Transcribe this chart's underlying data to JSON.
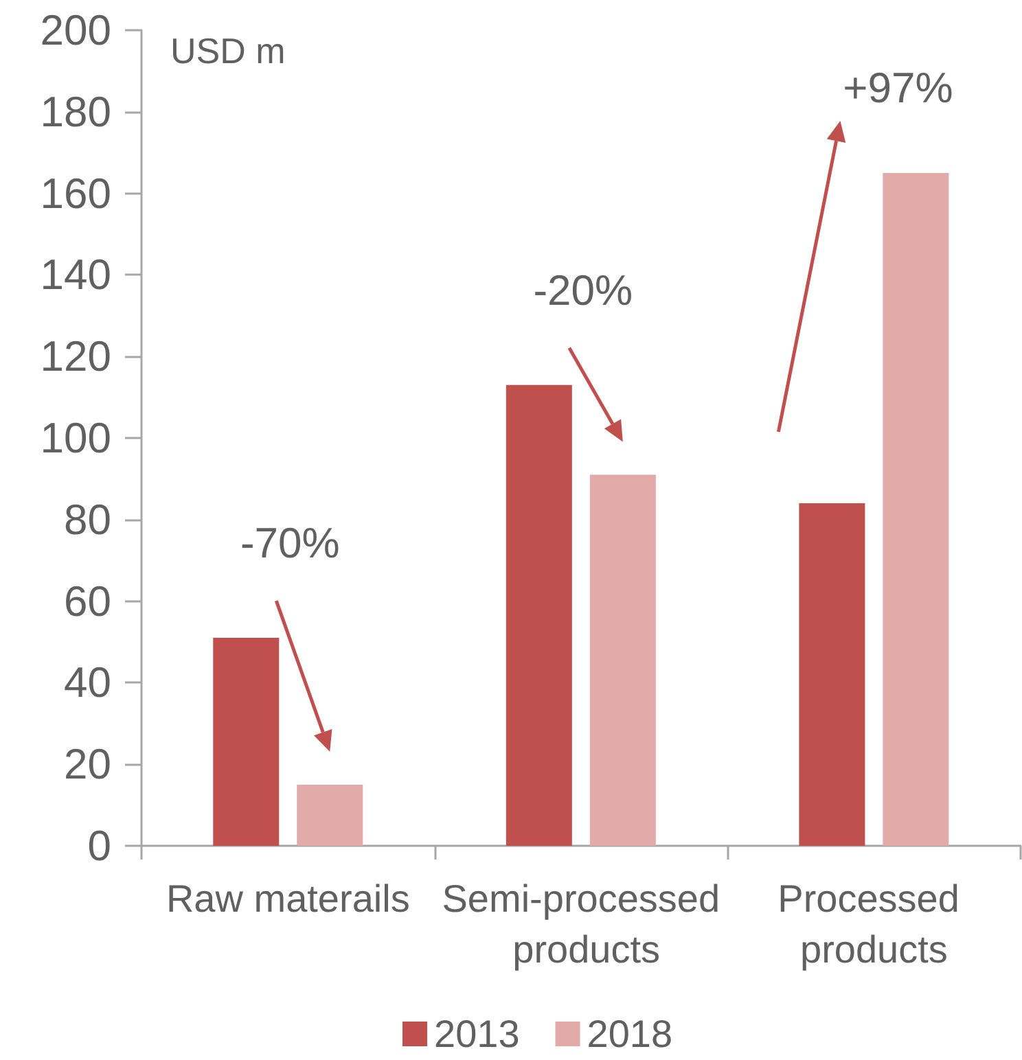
{
  "chart_data": {
    "type": "bar",
    "ylabel": "USD m",
    "categories": [
      "Raw materails",
      "Semi-processed products",
      "Processed products"
    ],
    "series": [
      {
        "name": "2013",
        "color": "#c0504d",
        "values": [
          51,
          113,
          84
        ]
      },
      {
        "name": "2018",
        "color": "#e2aaa9",
        "values": [
          15,
          91,
          165
        ]
      }
    ],
    "ylim": [
      0,
      200
    ],
    "yticks": [
      0,
      20,
      40,
      60,
      80,
      100,
      120,
      140,
      160,
      180,
      200
    ],
    "grid": false,
    "legend": "bottom",
    "annotations": [
      "-70%",
      "-20%",
      "+97%"
    ]
  }
}
